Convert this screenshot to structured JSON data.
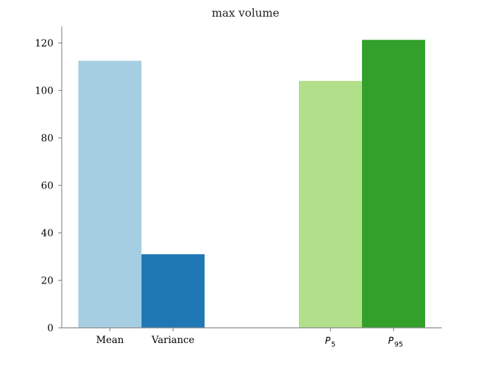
{
  "chart_data": {
    "type": "bar",
    "title": "max volume",
    "xlabel": "",
    "ylabel": "",
    "ylim": [
      0,
      127
    ],
    "yticks": [
      0,
      20,
      40,
      60,
      80,
      100,
      120
    ],
    "grid": false,
    "bars": [
      {
        "label": "Mean",
        "label_sub": "",
        "value": 112.5,
        "color": "#a6cee3"
      },
      {
        "label": "Variance",
        "label_sub": "",
        "value": 31.0,
        "color": "#1f78b4"
      },
      {
        "label": "P",
        "label_sub": "5",
        "value": 104.0,
        "color": "#b2df8a"
      },
      {
        "label": "P",
        "label_sub": "95",
        "value": 121.3,
        "color": "#33a02c"
      }
    ]
  }
}
